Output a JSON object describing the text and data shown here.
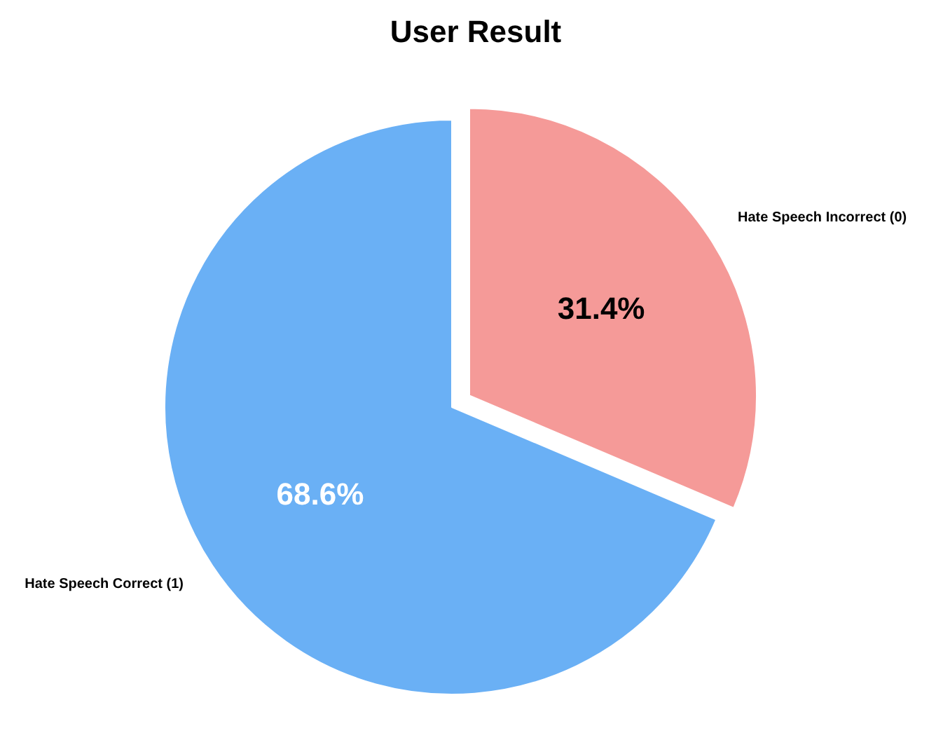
{
  "chart_data": {
    "type": "pie",
    "title": "User Result",
    "categories": [
      "Hate Speech Incorrect (0)",
      "Hate Speech Correct (1)"
    ],
    "values": [
      31.4,
      68.6
    ],
    "colors": [
      "#f59a98",
      "#6ab0f5"
    ],
    "value_labels": [
      "31.4%",
      "68.6%"
    ]
  }
}
